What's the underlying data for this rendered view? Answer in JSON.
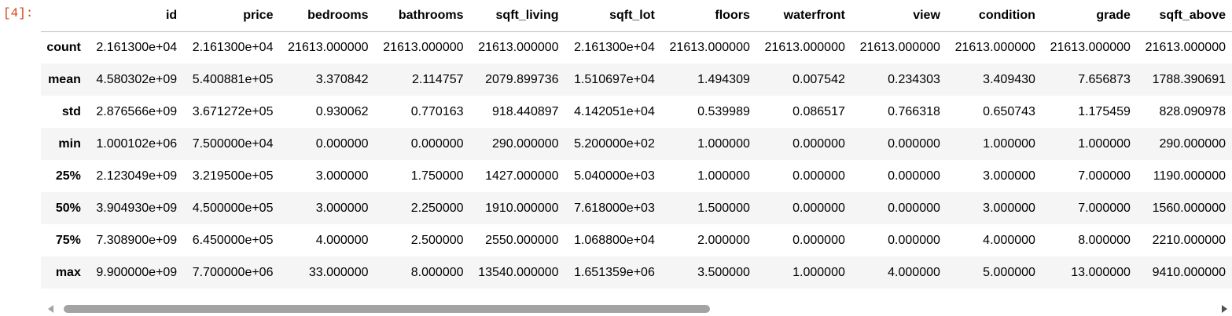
{
  "prompt": "[4]:",
  "table": {
    "columns": [
      "id",
      "price",
      "bedrooms",
      "bathrooms",
      "sqft_living",
      "sqft_lot",
      "floors",
      "waterfront",
      "view",
      "condition",
      "grade",
      "sqft_above"
    ],
    "rows": [
      {
        "label": "count",
        "values": [
          "2.161300e+04",
          "2.161300e+04",
          "21613.000000",
          "21613.000000",
          "21613.000000",
          "2.161300e+04",
          "21613.000000",
          "21613.000000",
          "21613.000000",
          "21613.000000",
          "21613.000000",
          "21613.000000"
        ]
      },
      {
        "label": "mean",
        "values": [
          "4.580302e+09",
          "5.400881e+05",
          "3.370842",
          "2.114757",
          "2079.899736",
          "1.510697e+04",
          "1.494309",
          "0.007542",
          "0.234303",
          "3.409430",
          "7.656873",
          "1788.390691"
        ]
      },
      {
        "label": "std",
        "values": [
          "2.876566e+09",
          "3.671272e+05",
          "0.930062",
          "0.770163",
          "918.440897",
          "4.142051e+04",
          "0.539989",
          "0.086517",
          "0.766318",
          "0.650743",
          "1.175459",
          "828.090978"
        ]
      },
      {
        "label": "min",
        "values": [
          "1.000102e+06",
          "7.500000e+04",
          "0.000000",
          "0.000000",
          "290.000000",
          "5.200000e+02",
          "1.000000",
          "0.000000",
          "0.000000",
          "1.000000",
          "1.000000",
          "290.000000"
        ]
      },
      {
        "label": "25%",
        "values": [
          "2.123049e+09",
          "3.219500e+05",
          "3.000000",
          "1.750000",
          "1427.000000",
          "5.040000e+03",
          "1.000000",
          "0.000000",
          "0.000000",
          "3.000000",
          "7.000000",
          "1190.000000"
        ]
      },
      {
        "label": "50%",
        "values": [
          "3.904930e+09",
          "4.500000e+05",
          "3.000000",
          "2.250000",
          "1910.000000",
          "7.618000e+03",
          "1.500000",
          "0.000000",
          "0.000000",
          "3.000000",
          "7.000000",
          "1560.000000"
        ]
      },
      {
        "label": "75%",
        "values": [
          "7.308900e+09",
          "6.450000e+05",
          "4.000000",
          "2.500000",
          "2550.000000",
          "1.068800e+04",
          "2.000000",
          "0.000000",
          "0.000000",
          "4.000000",
          "8.000000",
          "2210.000000"
        ]
      },
      {
        "label": "max",
        "values": [
          "9.900000e+09",
          "7.700000e+06",
          "33.000000",
          "8.000000",
          "13540.000000",
          "1.651359e+06",
          "3.500000",
          "1.000000",
          "4.000000",
          "5.000000",
          "13.000000",
          "9410.000000"
        ]
      }
    ]
  },
  "scrollbar": {
    "left_arrow": "scroll-left-arrow-icon",
    "right_arrow": "scroll-right-arrow-icon"
  },
  "colors": {
    "prompt": "#d84315",
    "stripe": "#f5f5f5",
    "header_rule": "#bdbdbd",
    "scroll_thumb": "#a3a3a3"
  }
}
